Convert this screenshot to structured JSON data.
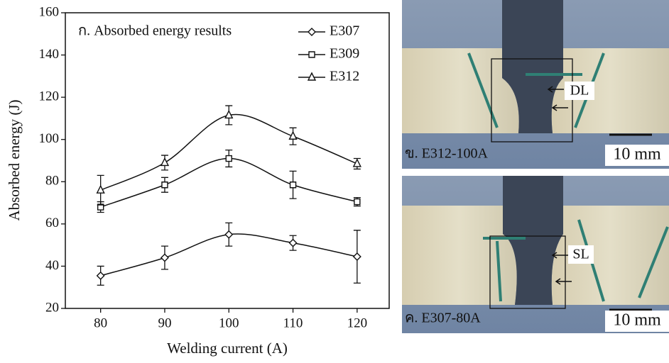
{
  "chart_data": {
    "type": "line",
    "y_label": "Absorbed energy (J)",
    "x_label": "Welding current (A)",
    "annotation": "ก. Absorbed energy results",
    "x": [
      80,
      90,
      100,
      110,
      120
    ],
    "xlim": [
      74.5,
      125
    ],
    "xticks": [
      80,
      90,
      100,
      110,
      120
    ],
    "ylim": [
      20,
      160
    ],
    "yticks": [
      20,
      40,
      60,
      80,
      100,
      120,
      140,
      160
    ],
    "legend": "top-right",
    "color": "#111111",
    "series": [
      {
        "name": "E307",
        "marker": "diamond",
        "values": [
          35.5,
          44,
          55,
          51,
          44.5
        ],
        "errors": [
          4.5,
          5.5,
          5.5,
          3.5,
          12.5
        ]
      },
      {
        "name": "E309",
        "marker": "square",
        "values": [
          68,
          78.5,
          91,
          78.5,
          70.5
        ],
        "errors": [
          2.5,
          3.5,
          4,
          6.5,
          2
        ]
      },
      {
        "name": "E312",
        "marker": "triangle",
        "values": [
          76,
          89,
          111.5,
          101.5,
          88.5
        ],
        "errors": [
          7,
          3.5,
          4.5,
          4,
          2.5
        ]
      }
    ]
  },
  "photos": [
    {
      "caption": "ข. E312-100A",
      "scale": "10 mm",
      "zone": "DL"
    },
    {
      "caption": "ค. E307-80A",
      "scale": "10 mm",
      "zone": "SL"
    }
  ]
}
